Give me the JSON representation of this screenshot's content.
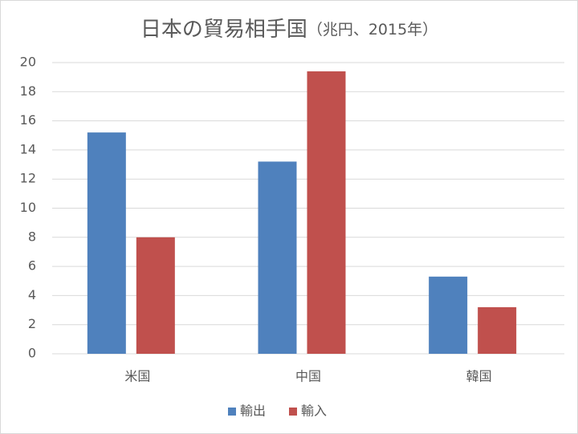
{
  "chart_data": {
    "type": "bar",
    "title": "日本の貿易相手国",
    "subtitle": "（兆円、2015年）",
    "categories": [
      "米国",
      "中国",
      "韓国"
    ],
    "series": [
      {
        "name": "輸出",
        "color": "#4f81bd",
        "values": [
          15.2,
          13.2,
          5.3
        ]
      },
      {
        "name": "輸入",
        "color": "#c0504d",
        "values": [
          8.0,
          19.4,
          3.2
        ]
      }
    ],
    "ylim": [
      0,
      20
    ],
    "yticks": [
      0,
      2,
      4,
      6,
      8,
      10,
      12,
      14,
      16,
      18,
      20
    ],
    "grid": true,
    "legend": "bottom"
  }
}
